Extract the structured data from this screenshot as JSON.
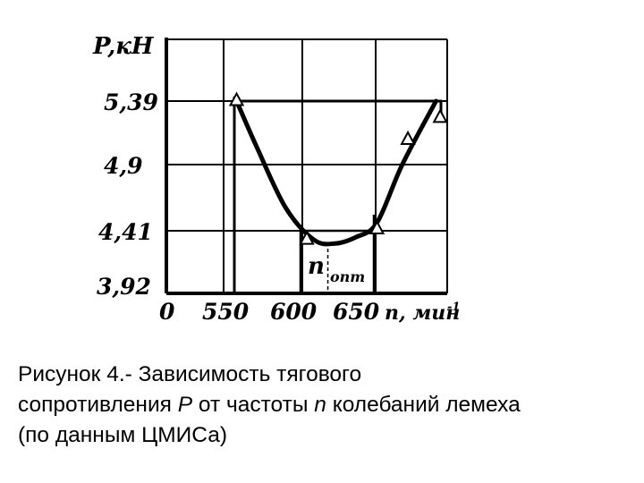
{
  "chart_data": {
    "type": "line",
    "ylabel": "P,кН",
    "xlabel": "n, мин",
    "xlabel_exp": "-1",
    "origin_label": "0",
    "x_ticks": [
      "550",
      "600",
      "650"
    ],
    "y_ticks": [
      "5,39",
      "4,9",
      "4,41",
      "3,92"
    ],
    "xlim": [
      500,
      700
    ],
    "ylim": [
      3.92,
      5.88
    ],
    "series": [
      {
        "marker": "triangle",
        "x": [
          550,
          600,
          650,
          672,
          695
        ],
        "y": [
          5.4,
          4.35,
          4.43,
          5.1,
          5.27
        ]
      }
    ],
    "curve": {
      "x": [
        550,
        565,
        585,
        605,
        620,
        635,
        650,
        668,
        692
      ],
      "y": [
        5.39,
        5.02,
        4.58,
        4.34,
        4.31,
        4.36,
        4.47,
        4.9,
        5.39
      ]
    },
    "annotation": {
      "label": "n",
      "subscript": "опт",
      "x": 615
    },
    "grid": true
  },
  "caption": {
    "line1": "Рисунок 4.- Зависимость тягового",
    "line2_a": "сопротивления ",
    "line2_b": "P",
    "line2_c": " от частоты ",
    "line2_d": "n",
    "line2_e": " колебаний лемеха",
    "line3": "(по данным ЦМИСа)"
  }
}
